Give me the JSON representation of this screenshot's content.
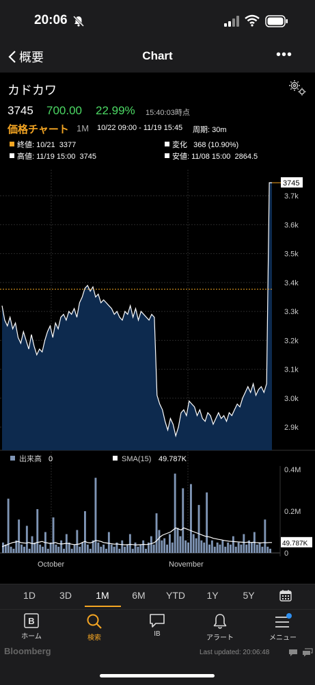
{
  "status": {
    "time": "20:06"
  },
  "nav": {
    "back_label": "概要",
    "title": "Chart"
  },
  "quote": {
    "company": "カドカワ",
    "price": "3745",
    "change": "700.00",
    "change_pct": "22.99%",
    "as_of": "15:40:03時点"
  },
  "chart_header": {
    "chart_type": "価格チャート",
    "period": "1M",
    "range": "10/22 09:00 - 11/19 15:45",
    "interval": "周期: 30m"
  },
  "stats": {
    "close_label": "終値: 10/21",
    "close_value": "3377",
    "change_label": "変化",
    "change_value": "368 (10.90%)",
    "high_label": "高値: 11/19 15:00",
    "high_value": "3745",
    "low_label": "安値: 11/08 15:00",
    "low_value": "2864.5"
  },
  "volume_legend": {
    "volume_label": "出来高",
    "volume_value": "0",
    "sma_label": "SMA(15)",
    "sma_value": "49.787K"
  },
  "colors": {
    "accent": "#f5a623",
    "positive": "#4cd964",
    "area_fill": "#0d2a4e",
    "volume_bar": "#7f95b5"
  },
  "chart_data": [
    {
      "type": "area",
      "title": "",
      "x_labels": [
        "October",
        "November"
      ],
      "ylim": [
        2820,
        3790
      ],
      "yticks": [
        "3.7k",
        "3.6k",
        "3.5k",
        "3.4k",
        "3.3k",
        "3.2k",
        "3.1k",
        "3.0k",
        "2.9k"
      ],
      "last_value_label": "3745",
      "reference_line": 3377,
      "values": [
        3320,
        3270,
        3250,
        3280,
        3240,
        3260,
        3210,
        3190,
        3230,
        3200,
        3170,
        3220,
        3180,
        3150,
        3170,
        3160,
        3200,
        3230,
        3250,
        3210,
        3260,
        3240,
        3280,
        3290,
        3270,
        3300,
        3290,
        3310,
        3280,
        3330,
        3350,
        3380,
        3390,
        3370,
        3385,
        3350,
        3360,
        3330,
        3340,
        3330,
        3320,
        3310,
        3290,
        3300,
        3280,
        3270,
        3300,
        3290,
        3320,
        3280,
        3310,
        3270,
        3300,
        3290,
        3280,
        3270,
        3290,
        3280,
        3010,
        2980,
        2960,
        2920,
        2890,
        2930,
        2910,
        2870,
        2900,
        2950,
        2960,
        2940,
        2990,
        2980,
        2970,
        2940,
        2960,
        2930,
        2920,
        2950,
        2940,
        2910,
        2930,
        2950,
        2930,
        2940,
        2920,
        2950,
        2940,
        2960,
        2980,
        2970,
        3000,
        3020,
        3040,
        3020,
        3050,
        3010,
        3030,
        3040,
        3020,
        3050,
        3745,
        3745
      ]
    },
    {
      "type": "bar",
      "title": "",
      "series": [
        {
          "name": "出来高",
          "values": [
            0.05,
            0.04,
            0.26,
            0.03,
            0.02,
            0.06,
            0.16,
            0.04,
            0.03,
            0.13,
            0.02,
            0.08,
            0.05,
            0.21,
            0.04,
            0.03,
            0.1,
            0.02,
            0.05,
            0.17,
            0.04,
            0.03,
            0.06,
            0.02,
            0.09,
            0.05,
            0.02,
            0.04,
            0.11,
            0.03,
            0.05,
            0.2,
            0.04,
            0.02,
            0.06,
            0.36,
            0.05,
            0.03,
            0.04,
            0.02,
            0.1,
            0.04,
            0.03,
            0.05,
            0.02,
            0.06,
            0.03,
            0.04,
            0.09,
            0.02,
            0.05,
            0.03,
            0.04,
            0.06,
            0.02,
            0.05,
            0.08,
            0.04,
            0.19,
            0.11,
            0.06,
            0.07,
            0.04,
            0.09,
            0.05,
            0.38,
            0.12,
            0.08,
            0.31,
            0.06,
            0.05,
            0.33,
            0.09,
            0.07,
            0.23,
            0.06,
            0.05,
            0.29,
            0.04,
            0.06,
            0.03,
            0.05,
            0.04,
            0.06,
            0.03,
            0.05,
            0.04,
            0.08,
            0.03,
            0.05,
            0.04,
            0.09,
            0.04,
            0.06,
            0.05,
            0.1,
            0.04,
            0.05,
            0.03,
            0.16,
            0.03,
            0.02
          ]
        },
        {
          "name": "SMA(15)",
          "values": [
            0.03,
            0.035,
            0.04,
            0.045,
            0.05,
            0.052,
            0.055,
            0.05,
            0.048,
            0.047,
            0.05,
            0.046,
            0.044,
            0.05,
            0.052,
            0.055,
            0.05,
            0.048,
            0.045,
            0.047,
            0.05,
            0.045,
            0.043,
            0.044,
            0.046,
            0.045,
            0.042,
            0.04,
            0.041,
            0.043,
            0.05,
            0.055,
            0.05,
            0.048,
            0.052,
            0.06,
            0.058,
            0.055,
            0.05,
            0.048,
            0.046,
            0.044,
            0.042,
            0.043,
            0.041,
            0.04,
            0.039,
            0.04,
            0.041,
            0.04,
            0.038,
            0.039,
            0.04,
            0.041,
            0.04,
            0.042,
            0.045,
            0.05,
            0.06,
            0.075,
            0.085,
            0.09,
            0.095,
            0.1,
            0.11,
            0.12,
            0.115,
            0.11,
            0.12,
            0.115,
            0.11,
            0.105,
            0.1,
            0.095,
            0.09,
            0.085,
            0.08,
            0.078,
            0.075,
            0.07,
            0.068,
            0.065,
            0.063,
            0.06,
            0.058,
            0.056,
            0.055,
            0.054,
            0.053,
            0.052,
            0.051,
            0.05,
            0.052,
            0.05,
            0.051,
            0.05,
            0.049,
            0.048,
            0.05,
            0.049,
            0.05,
            0.0498
          ]
        }
      ],
      "ylim": [
        0,
        0.4
      ],
      "yticks": [
        "0.4M",
        "0.2M",
        "0"
      ],
      "last_value_label": "49.787K"
    }
  ],
  "periods": [
    "1D",
    "3D",
    "1M",
    "6M",
    "YTD",
    "1Y",
    "5Y"
  ],
  "tabs": [
    {
      "label": "ホーム",
      "icon": "bloomberg-b-icon"
    },
    {
      "label": "検索",
      "icon": "search-icon"
    },
    {
      "label": "IB",
      "icon": "chat-bubble-icon"
    },
    {
      "label": "アラート",
      "icon": "bell-icon"
    },
    {
      "label": "メニュー",
      "icon": "menu-icon"
    }
  ],
  "footer": {
    "brand": "Bloomberg",
    "last_updated": "Last updated: 20:06:48"
  }
}
